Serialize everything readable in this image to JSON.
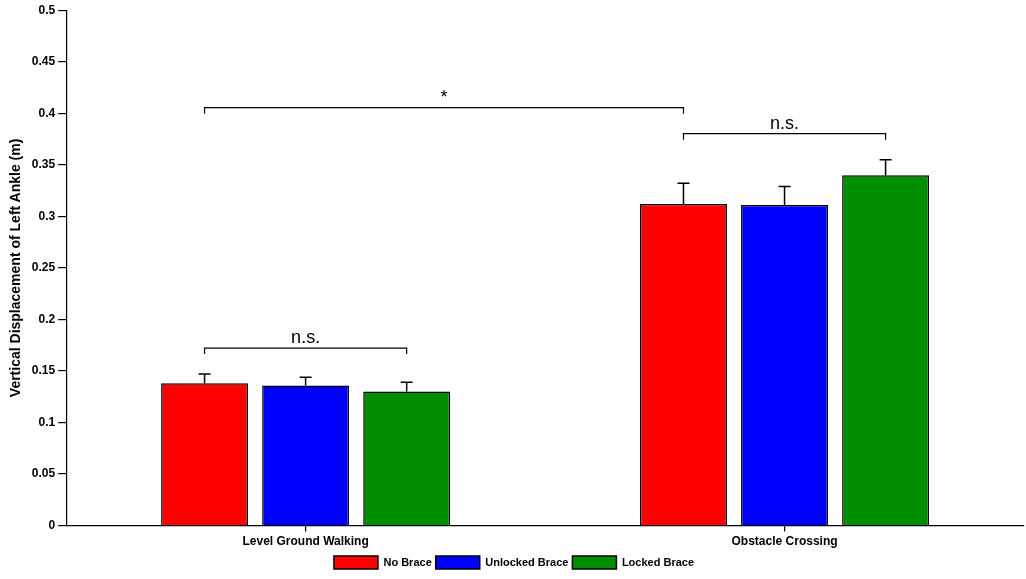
{
  "chart_data": {
    "type": "bar",
    "ylabel": "Vertical Displacement of Left Ankle (m)",
    "categories": [
      "Level Ground Walking",
      "Obstacle Crossing"
    ],
    "series": [
      {
        "name": "No Brace",
        "color": "#ff0000",
        "values": [
          0.138,
          0.312
        ],
        "errors": [
          [
            0.138,
            0.147
          ],
          [
            0.312,
            0.332
          ]
        ]
      },
      {
        "name": "Unlocked Brace",
        "color": "#0000ff",
        "values": [
          0.136,
          0.311
        ],
        "errors": [
          [
            0.136,
            0.144
          ],
          [
            0.311,
            0.329
          ]
        ]
      },
      {
        "name": "Locked Brace",
        "color": "#008f00",
        "values": [
          0.13,
          0.34
        ],
        "errors": [
          [
            0.13,
            0.139
          ],
          [
            0.34,
            0.355
          ]
        ]
      }
    ],
    "ylim": [
      0,
      0.5
    ],
    "yticks": [
      0,
      0.05,
      0.1,
      0.15,
      0.2,
      0.25,
      0.3,
      0.35,
      0.4,
      0.45,
      0.5
    ],
    "grid": false,
    "legend": "bottom",
    "annotations": [
      "*",
      "n.s.",
      "n.s."
    ]
  }
}
